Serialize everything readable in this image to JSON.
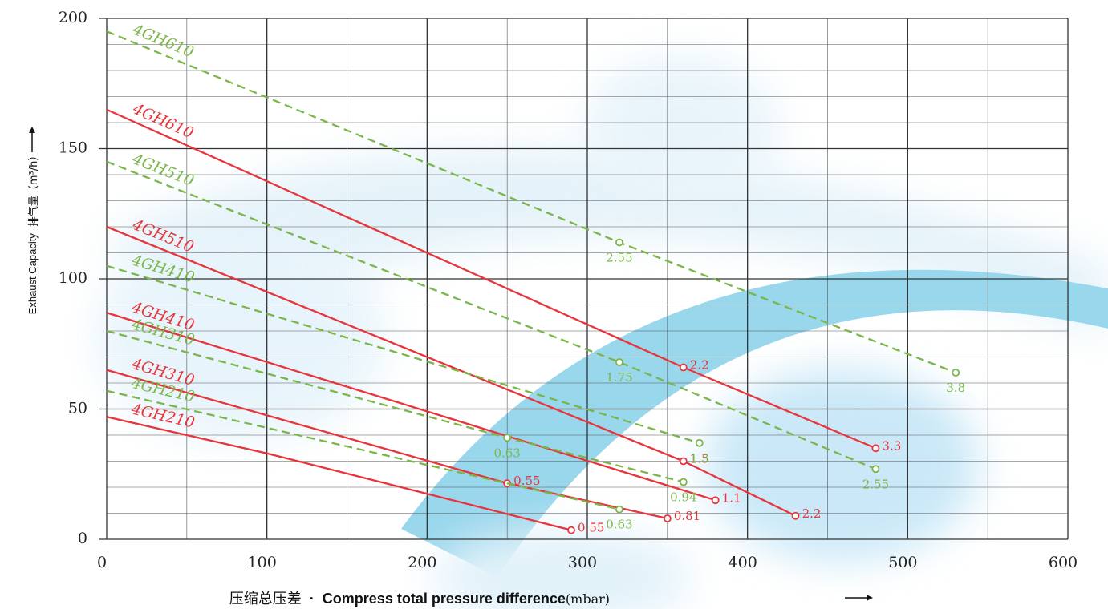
{
  "chart_data": {
    "type": "line",
    "x_label_cn": "压缩总压差",
    "x_label_sep": "·",
    "x_label_en": "Compress total pressure difference",
    "x_label_unit": "(mbar)",
    "y_label_en": "Exhaust Capacity",
    "y_label_cn": "排气量（m³/h）",
    "xlim": [
      0,
      600
    ],
    "ylim": [
      0,
      200
    ],
    "xticks": [
      0,
      100,
      200,
      300,
      400,
      500,
      600
    ],
    "yticks": [
      0,
      50,
      100,
      150,
      200
    ],
    "minor_xticks": [
      50,
      150,
      250,
      350,
      450,
      550
    ],
    "minor_yticks": [
      10,
      20,
      30,
      40,
      60,
      70,
      80,
      90,
      110,
      120,
      130,
      140,
      160,
      170,
      180,
      190
    ],
    "grid": true,
    "series": [
      {
        "name": "4GH610",
        "color": "#7ab648",
        "dashed": true,
        "x": [
          0,
          320,
          530
        ],
        "values": [
          195,
          114,
          64
        ],
        "point_labels": [
          null,
          "2.55",
          "3.8"
        ]
      },
      {
        "name": "4GH610",
        "color": "#e8343a",
        "dashed": false,
        "x": [
          0,
          360,
          480
        ],
        "values": [
          165,
          66,
          35
        ],
        "point_labels": [
          null,
          "2.2",
          "3.3"
        ]
      },
      {
        "name": "4GH510",
        "color": "#7ab648",
        "dashed": true,
        "x": [
          0,
          320,
          480
        ],
        "values": [
          145,
          68,
          27
        ],
        "point_labels": [
          null,
          "1.75",
          "2.55"
        ]
      },
      {
        "name": "4GH510",
        "color": "#e8343a",
        "dashed": false,
        "x": [
          0,
          360,
          430
        ],
        "values": [
          120,
          30,
          9
        ],
        "point_labels": [
          null,
          "1.5",
          "2.2"
        ]
      },
      {
        "name": "4GH410",
        "color": "#7ab648",
        "dashed": true,
        "x": [
          0,
          370
        ],
        "values": [
          105,
          37
        ],
        "point_labels": [
          null,
          "1.3"
        ]
      },
      {
        "name": "4GH410",
        "color": "#e8343a",
        "dashed": false,
        "x": [
          0,
          380
        ],
        "values": [
          87,
          15
        ],
        "point_labels": [
          null,
          "1.1"
        ]
      },
      {
        "name": "4GH310",
        "color": "#7ab648",
        "dashed": true,
        "x": [
          0,
          250,
          360
        ],
        "values": [
          80,
          39,
          22
        ],
        "point_labels": [
          null,
          "0.63",
          "0.94"
        ]
      },
      {
        "name": "4GH310",
        "color": "#e8343a",
        "dashed": false,
        "x": [
          0,
          250,
          350
        ],
        "values": [
          65,
          21.5,
          8
        ],
        "point_labels": [
          null,
          "0.55",
          "0.81"
        ]
      },
      {
        "name": "4GH210",
        "color": "#7ab648",
        "dashed": true,
        "x": [
          0,
          320
        ],
        "values": [
          57,
          11.5
        ],
        "point_labels": [
          null,
          "0.63"
        ]
      },
      {
        "name": "4GH210",
        "color": "#e8343a",
        "dashed": false,
        "x": [
          0,
          100,
          290
        ],
        "values": [
          47,
          33,
          3.5
        ],
        "point_labels": [
          null,
          null,
          "0.55"
        ]
      }
    ]
  }
}
